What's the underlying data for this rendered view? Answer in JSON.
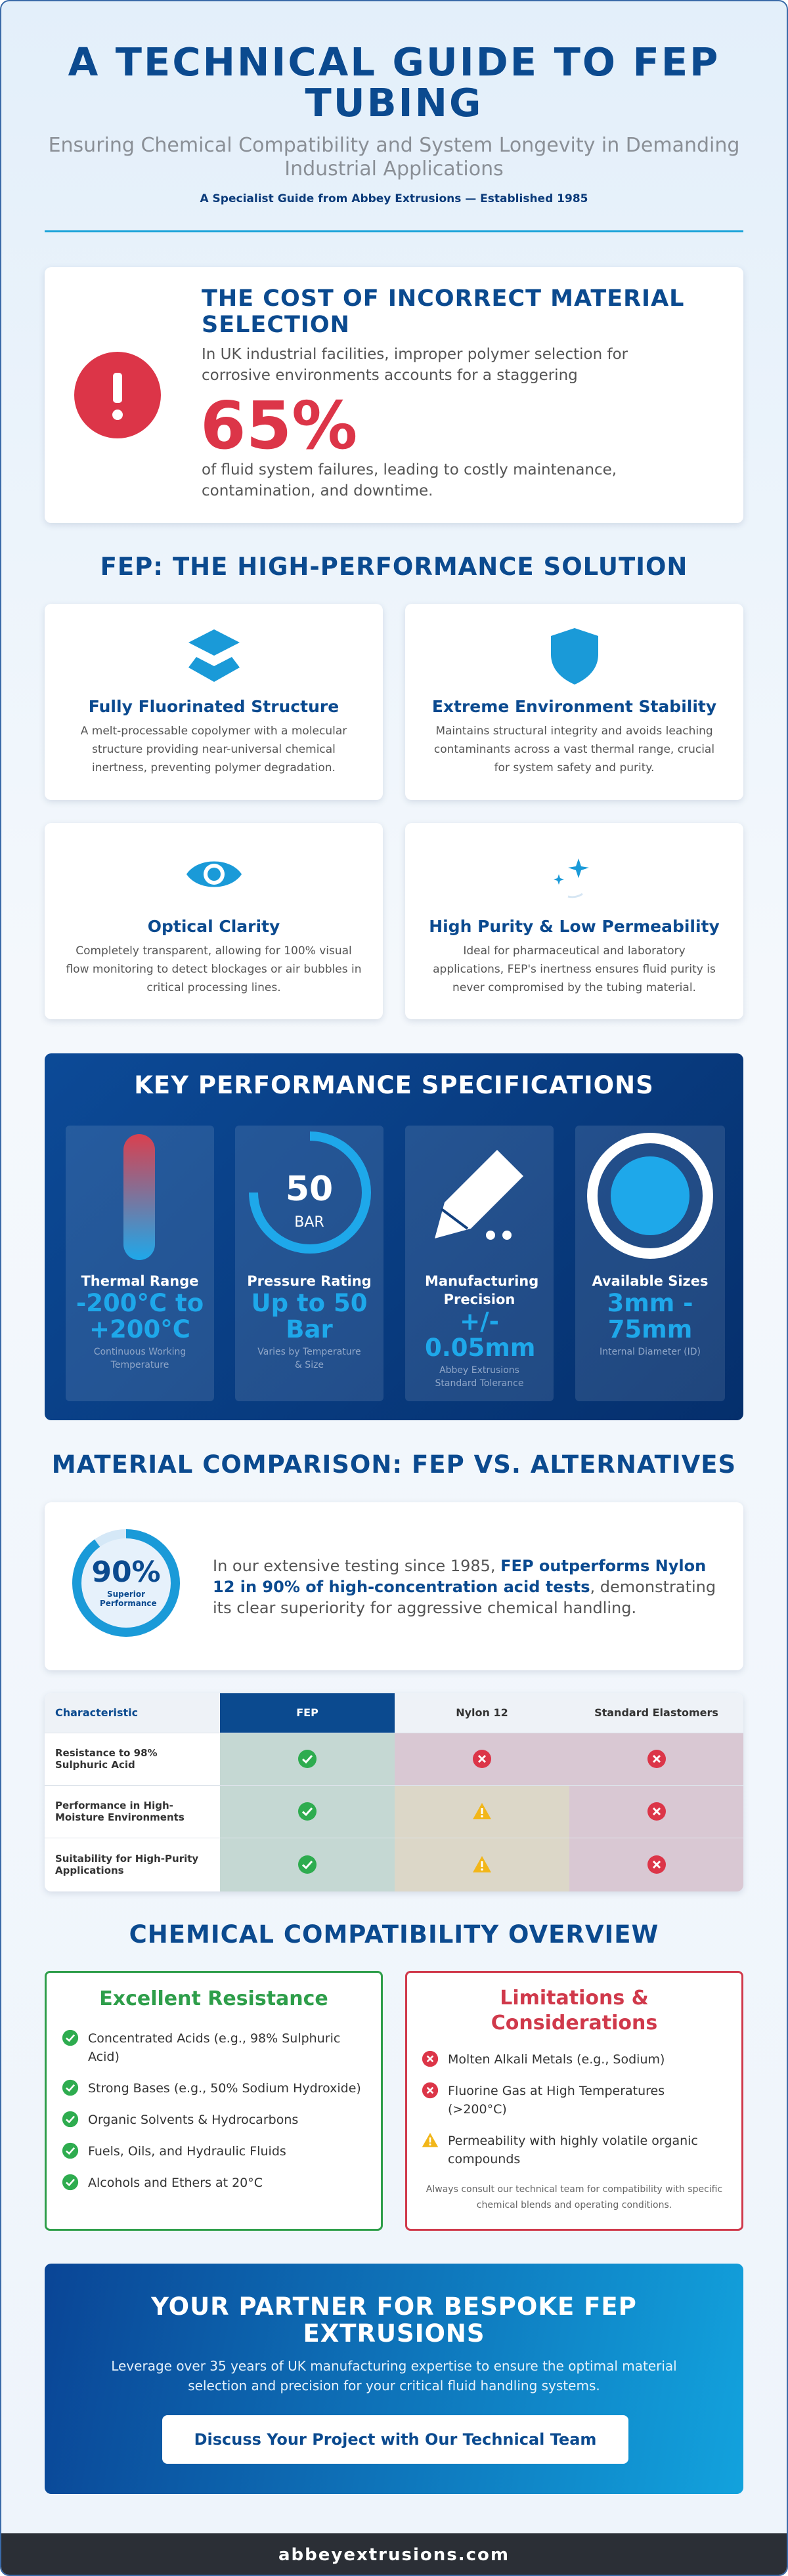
{
  "header": {
    "title": "A TECHNICAL GUIDE TO FEP TUBING",
    "subtitle": "Ensuring Chemical Compatibility and System Longevity in Demanding Industrial Applications",
    "tagline": "A Specialist Guide from Abbey Extrusions — Established 1985"
  },
  "problem": {
    "title": "THE COST OF INCORRECT MATERIAL SELECTION",
    "intro": "In UK industrial facilities, improper polymer selection for corrosive environments accounts for a staggering",
    "stat": "65%",
    "outcome": "of fluid system failures, leading to costly maintenance, contamination, and downtime."
  },
  "solution": {
    "title": "FEP: THE HIGH-PERFORMANCE SOLUTION",
    "features": [
      {
        "title": "Fully Fluorinated Structure",
        "text": "A melt-processable copolymer with a molecular structure providing near-universal chemical inertness, preventing polymer degradation."
      },
      {
        "title": "Extreme Environment Stability",
        "text": "Maintains structural integrity and avoids leaching contaminants across a vast thermal range, crucial for system safety and purity."
      },
      {
        "title": "Optical Clarity",
        "text": "Completely transparent, allowing for 100% visual flow monitoring to detect blockages or air bubbles in critical processing lines."
      },
      {
        "title": "High Purity & Low Permeability",
        "text": "Ideal for pharmaceutical and laboratory applications, FEP's inertness ensures fluid purity is never compromised by the tubing material."
      }
    ]
  },
  "specs": {
    "title": "KEY PERFORMANCE SPECIFICATIONS",
    "dial_value": "50",
    "dial_unit": "BAR",
    "items": [
      {
        "label": "Thermal Range",
        "value": "-200°C to +200°C",
        "note": "Continuous Working Temperature"
      },
      {
        "label": "Pressure Rating",
        "value": "Up to 50 Bar",
        "note": "Varies by Temperature & Size"
      },
      {
        "label": "Manufacturing Precision",
        "value": "+/- 0.05mm",
        "note": "Abbey Extrusions Standard Tolerance"
      },
      {
        "label": "Available Sizes",
        "value": "3mm - 75mm",
        "note": "Internal Diameter (ID)"
      }
    ]
  },
  "comparison": {
    "title": "MATERIAL COMPARISON: FEP VS. ALTERNATIVES",
    "stat": "90%",
    "stat_caption": "Superior Performance",
    "text_before": "In our extensive testing since 1985, ",
    "highlight": "FEP outperforms Nylon 12 in 90% of high-concentration acid tests",
    "text_after": ", demonstrating its clear superiority for aggressive chemical handling."
  },
  "table": {
    "headers": [
      "Characteristic",
      "FEP",
      "Nylon 12",
      "Standard Elastomers"
    ],
    "row_labels": [
      "Resistance to 98% Sulphuric Acid",
      "Performance in High-Moisture Environments",
      "Suitability for High-Purity Applications"
    ]
  },
  "compatibility": {
    "title": "CHEMICAL COMPATIBILITY OVERVIEW",
    "resistant": {
      "title": "Excellent Resistance",
      "items": [
        "Concentrated Acids (e.g., 98% Sulphuric Acid)",
        "Strong Bases (e.g., 50% Sodium Hydroxide)",
        "Organic Solvents & Hydrocarbons",
        "Fuels, Oils, and Hydraulic Fluids",
        "Alcohols and Ethers at 20°C"
      ]
    },
    "limitations": {
      "title": "Limitations & Considerations",
      "items": [
        "Molten Alkali Metals (e.g., Sodium)",
        "Fluorine Gas at High Temperatures (>200°C)",
        "Permeability with highly volatile organic compounds"
      ],
      "note": "Always consult our technical team for compatibility with specific chemical blends and operating conditions."
    }
  },
  "cta": {
    "title": "YOUR PARTNER FOR BESPOKE FEP EXTRUSIONS",
    "text": "Leverage over 35 years of UK manufacturing expertise to ensure the optimal material selection and precision for your critical fluid handling systems.",
    "button": "Discuss Your Project with Our Technical Team"
  },
  "footer": {
    "site": "abbeyextrusions.com"
  }
}
